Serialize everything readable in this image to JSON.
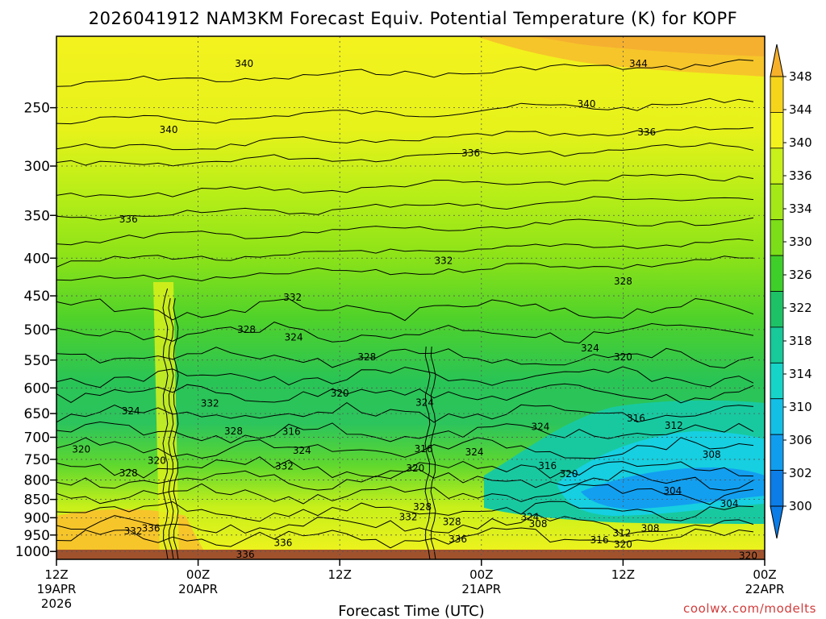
{
  "chart_data": {
    "type": "heatmap",
    "title": "2026041912 NAM3KM Forecast Equiv. Potential Temperature (K) for KOPF",
    "xlabel": "Forecast Time (UTC)",
    "credit": "coolwx.com/modelts",
    "x_ticks": [
      {
        "lines": [
          "12Z",
          "19APR",
          "2026"
        ],
        "hour": 0
      },
      {
        "lines": [
          "00Z",
          "20APR"
        ],
        "hour": 12
      },
      {
        "lines": [
          "12Z"
        ],
        "hour": 24
      },
      {
        "lines": [
          "00Z",
          "21APR"
        ],
        "hour": 36
      },
      {
        "lines": [
          "12Z"
        ],
        "hour": 48
      },
      {
        "lines": [
          "00Z",
          "22APR"
        ],
        "hour": 60
      }
    ],
    "xlim": [
      0,
      60
    ],
    "y_ticks": [
      "250",
      "300",
      "350",
      "400",
      "450",
      "500",
      "550",
      "600",
      "650",
      "700",
      "750",
      "800",
      "850",
      "900",
      "950",
      "1000"
    ],
    "y_tick_values": [
      250,
      300,
      350,
      400,
      450,
      500,
      550,
      600,
      650,
      700,
      750,
      800,
      850,
      900,
      950,
      1000
    ],
    "ylim": [
      1025,
      200
    ],
    "y_scale": "log-pressure",
    "grid": true,
    "colorbar": {
      "labels": [
        "348",
        "344",
        "340",
        "336",
        "334",
        "330",
        "326",
        "322",
        "318",
        "314",
        "310",
        "306",
        "302",
        "300"
      ],
      "values": [
        348,
        344,
        340,
        336,
        334,
        330,
        326,
        322,
        318,
        314,
        310,
        306,
        302,
        300
      ],
      "colors": [
        "#f6b02a",
        "#f7d41c",
        "#f4f21e",
        "#c8f01a",
        "#a4e818",
        "#7cde18",
        "#3fcf2a",
        "#1ec266",
        "#18c99a",
        "#16d4c8",
        "#14bfe6",
        "#119dee",
        "#0c7ce6"
      ]
    },
    "contour_labels": [
      {
        "text": "340",
        "hour": 15.9,
        "p": 218
      },
      {
        "text": "344",
        "hour": 49.3,
        "p": 218
      },
      {
        "text": "340",
        "hour": 9.5,
        "p": 268
      },
      {
        "text": "340",
        "hour": 44.9,
        "p": 247
      },
      {
        "text": "336",
        "hour": 50.0,
        "p": 270
      },
      {
        "text": "336",
        "hour": 35.1,
        "p": 288
      },
      {
        "text": "336",
        "hour": 6.1,
        "p": 354
      },
      {
        "text": "332",
        "hour": 32.8,
        "p": 403
      },
      {
        "text": "328",
        "hour": 48.0,
        "p": 430
      },
      {
        "text": "332",
        "hour": 20.0,
        "p": 452
      },
      {
        "text": "328",
        "hour": 16.1,
        "p": 500
      },
      {
        "text": "324",
        "hour": 20.1,
        "p": 512
      },
      {
        "text": "328",
        "hour": 26.3,
        "p": 545
      },
      {
        "text": "324",
        "hour": 45.2,
        "p": 530
      },
      {
        "text": "320",
        "hour": 48.0,
        "p": 545
      },
      {
        "text": "320",
        "hour": 24.0,
        "p": 610
      },
      {
        "text": "324",
        "hour": 31.2,
        "p": 628
      },
      {
        "text": "332",
        "hour": 13.0,
        "p": 630
      },
      {
        "text": "324",
        "hour": 6.3,
        "p": 645
      },
      {
        "text": "328",
        "hour": 15.0,
        "p": 687
      },
      {
        "text": "316",
        "hour": 19.9,
        "p": 688
      },
      {
        "text": "316",
        "hour": 49.1,
        "p": 660
      },
      {
        "text": "312",
        "hour": 52.3,
        "p": 675
      },
      {
        "text": "324",
        "hour": 41.0,
        "p": 677
      },
      {
        "text": "320",
        "hour": 2.1,
        "p": 727
      },
      {
        "text": "320",
        "hour": 8.5,
        "p": 753
      },
      {
        "text": "324",
        "hour": 20.8,
        "p": 730
      },
      {
        "text": "316",
        "hour": 31.1,
        "p": 726
      },
      {
        "text": "324",
        "hour": 35.4,
        "p": 733
      },
      {
        "text": "332",
        "hour": 19.3,
        "p": 766
      },
      {
        "text": "320",
        "hour": 30.4,
        "p": 771
      },
      {
        "text": "316",
        "hour": 41.6,
        "p": 765
      },
      {
        "text": "320",
        "hour": 43.4,
        "p": 785
      },
      {
        "text": "308",
        "hour": 55.5,
        "p": 739
      },
      {
        "text": "328",
        "hour": 6.1,
        "p": 783
      },
      {
        "text": "304",
        "hour": 52.2,
        "p": 827
      },
      {
        "text": "304",
        "hour": 57.0,
        "p": 862
      },
      {
        "text": "328",
        "hour": 31.0,
        "p": 870
      },
      {
        "text": "332",
        "hour": 29.8,
        "p": 898
      },
      {
        "text": "328",
        "hour": 33.5,
        "p": 912
      },
      {
        "text": "324",
        "hour": 40.1,
        "p": 898
      },
      {
        "text": "308",
        "hour": 40.8,
        "p": 918
      },
      {
        "text": "308",
        "hour": 50.3,
        "p": 930
      },
      {
        "text": "312",
        "hour": 47.9,
        "p": 945
      },
      {
        "text": "316",
        "hour": 46.0,
        "p": 965
      },
      {
        "text": "320",
        "hour": 48.0,
        "p": 978
      },
      {
        "text": "336",
        "hour": 8.0,
        "p": 930
      },
      {
        "text": "332",
        "hour": 6.5,
        "p": 938
      },
      {
        "text": "336",
        "hour": 19.2,
        "p": 973
      },
      {
        "text": "336",
        "hour": 34.0,
        "p": 963
      },
      {
        "text": "336",
        "hour": 16.0,
        "p": 1010
      },
      {
        "text": "320",
        "hour": 58.6,
        "p": 1014
      }
    ]
  }
}
